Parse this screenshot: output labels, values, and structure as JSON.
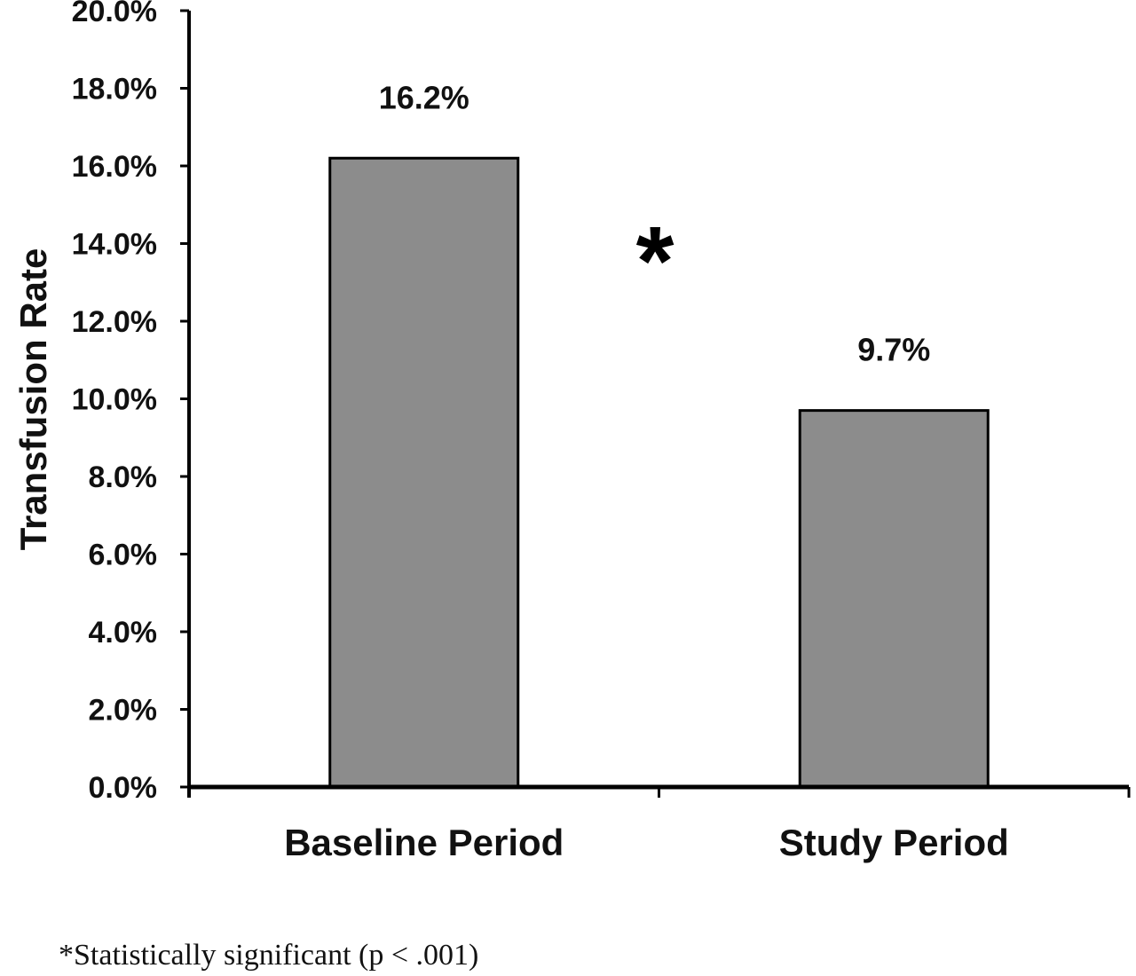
{
  "chart_data": {
    "type": "bar",
    "categories": [
      "Baseline Period",
      "Study Period"
    ],
    "values": [
      16.2,
      9.7
    ],
    "data_labels": [
      "16.2%",
      "9.7%"
    ],
    "xlabel": "",
    "ylabel": "Transfusion Rate",
    "ylim": [
      0,
      20
    ],
    "yticks": [
      0,
      2,
      4,
      6,
      8,
      10,
      12,
      14,
      16,
      18,
      20
    ],
    "ytick_labels": [
      "0.0%",
      "2.0%",
      "4.0%",
      "6.0%",
      "8.0%",
      "10.0%",
      "12.0%",
      "14.0%",
      "16.0%",
      "18.0%",
      "20.0%"
    ],
    "grid": false,
    "legend": "none",
    "bar_color": "#8c8c8c",
    "annotation": "*",
    "footnote": "*Statistically significant (p < .001)"
  }
}
